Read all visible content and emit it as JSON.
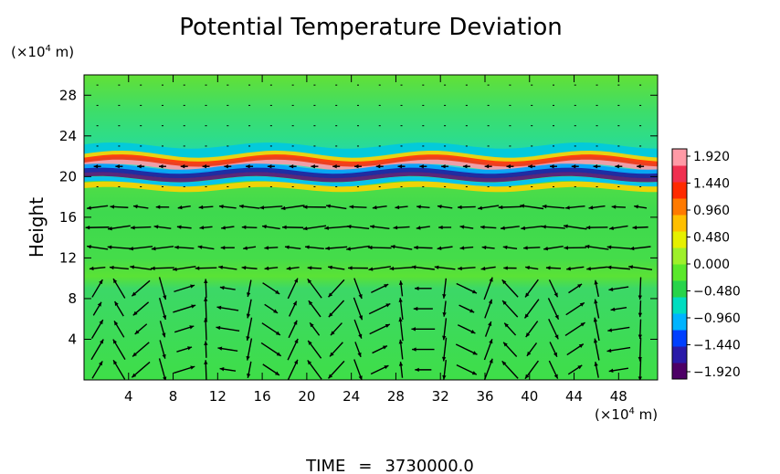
{
  "chart_data": {
    "type": "heatmap",
    "title": "Potential Temperature Deviation",
    "ylabel": "Height",
    "yunit_prefix": "(×10",
    "yunit_exp": "4",
    "yunit_suffix": " m)",
    "xunit_prefix": "(×10",
    "xunit_exp": "4",
    "xunit_suffix": " m)",
    "xlim": [
      0,
      51.5
    ],
    "ylim": [
      0,
      30
    ],
    "xticks": [
      "4",
      "8",
      "12",
      "16",
      "20",
      "24",
      "28",
      "32",
      "36",
      "40",
      "44",
      "48"
    ],
    "xtick_values": [
      4,
      8,
      12,
      16,
      20,
      24,
      28,
      32,
      36,
      40,
      44,
      48
    ],
    "yticks": [
      "4",
      "8",
      "12",
      "16",
      "20",
      "24",
      "28"
    ],
    "ytick_values": [
      4,
      8,
      12,
      16,
      20,
      24,
      28
    ],
    "colorbar": {
      "labels": [
        "1.920",
        "1.440",
        "0.960",
        "0.480",
        "0.000",
        "−0.480",
        "−0.960",
        "−1.440",
        "−1.920"
      ],
      "values": [
        1.92,
        1.44,
        0.96,
        0.48,
        0.0,
        -0.48,
        -0.96,
        -1.44,
        -1.92
      ],
      "colors": [
        "#4d0066",
        "#2a1aa8",
        "#0040ff",
        "#00b4ff",
        "#00ddc0",
        "#27d44a",
        "#5ae82b",
        "#9ef02b",
        "#e6f000",
        "#ffbf00",
        "#ff7a00",
        "#ff2a00",
        "#f03050",
        "#ff9aa6"
      ]
    },
    "background_value": 0.0,
    "band_heights": [
      20,
      21
    ],
    "band_values": [
      -1.9,
      1.9
    ],
    "wind_field_layers": {
      "upper_flow_height_range": [
        11,
        18
      ],
      "upper_flow_direction": "westward",
      "lower_flow_height_range": [
        0,
        9
      ],
      "lower_flow_pattern": "alternating updraft/downdraft cells"
    },
    "grid": false,
    "legend_placement": "right"
  },
  "footer": {
    "time_label": "TIME",
    "equals": "=",
    "time_value": "3730000.0"
  }
}
